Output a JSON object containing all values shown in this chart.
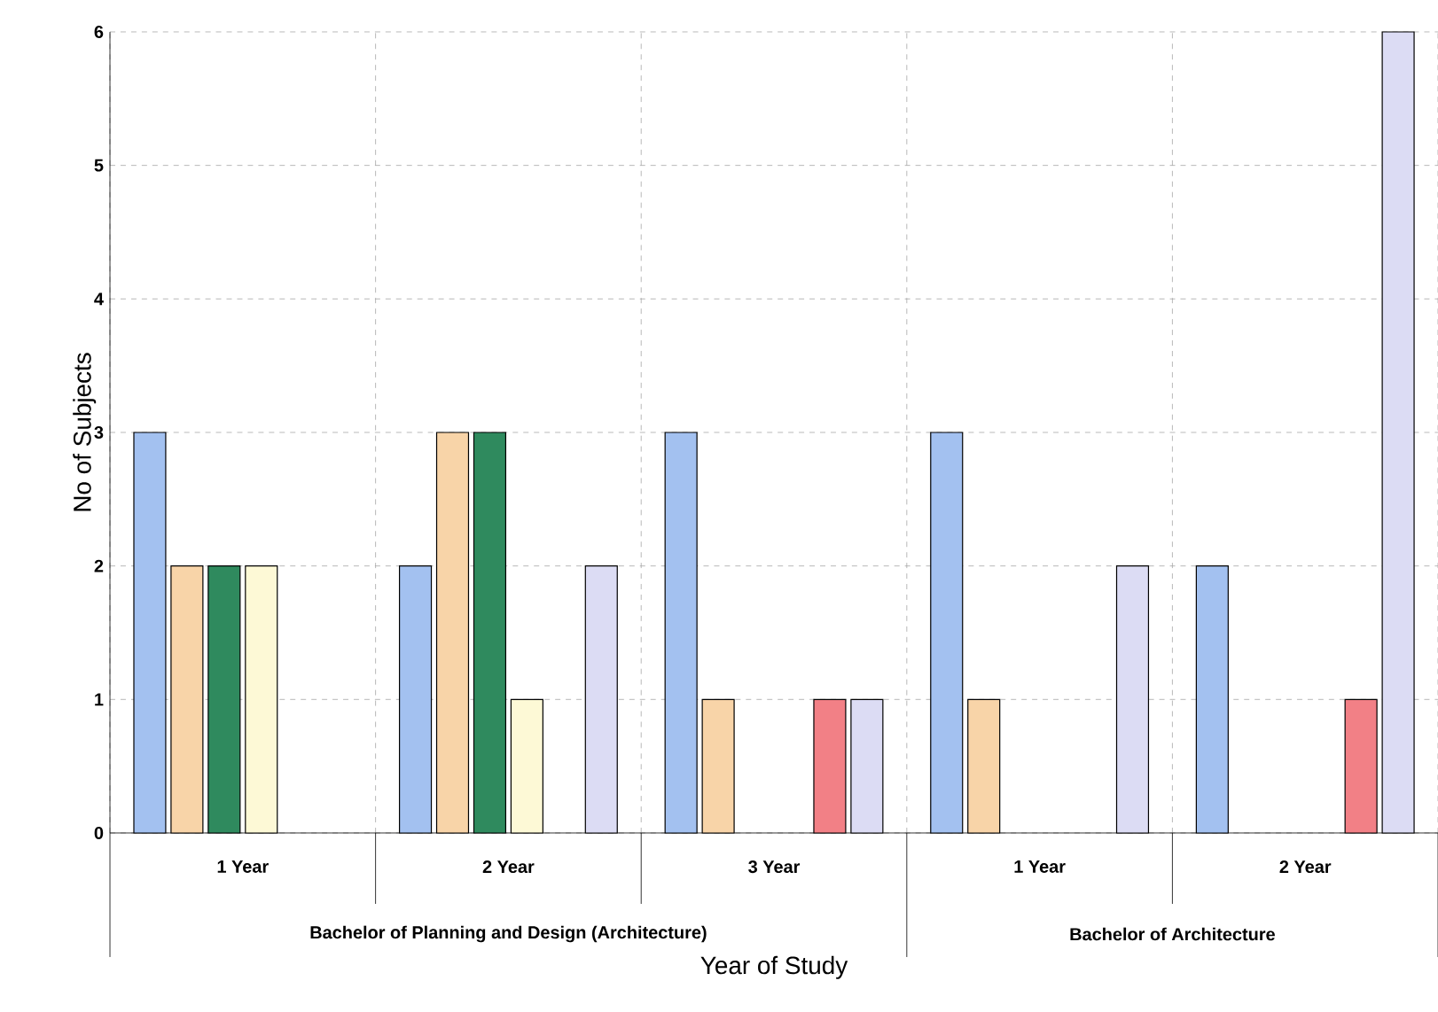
{
  "chart_data": {
    "type": "bar",
    "xlabel": "Year of Study",
    "ylabel": "No of Subjects",
    "categories": [
      "1 Year",
      "2 Year",
      "3 Year",
      "1 Year",
      "2 Year"
    ],
    "series": [
      {
        "color": "#a3c1f0",
        "values": [
          3,
          2,
          3,
          3,
          2
        ]
      },
      {
        "color": "#f8d4a8",
        "values": [
          2,
          3,
          1,
          1,
          null
        ]
      },
      {
        "color": "#2f8a5e",
        "values": [
          2,
          3,
          null,
          null,
          null
        ]
      },
      {
        "color": "#fdf9d6",
        "values": [
          2,
          1,
          null,
          null,
          null
        ]
      },
      {
        "color": "#f28086",
        "values": [
          null,
          null,
          1,
          null,
          1
        ]
      },
      {
        "color": "#dcdcf4",
        "values": [
          null,
          2,
          1,
          2,
          6
        ]
      }
    ],
    "ylim": [
      0,
      6
    ],
    "yticks": [
      0,
      1,
      2,
      3,
      4,
      5,
      6
    ],
    "grid": true,
    "annotations": [
      "Bachelor of Planning and Design (Architecture)",
      "Bachelor of Architecture"
    ]
  }
}
